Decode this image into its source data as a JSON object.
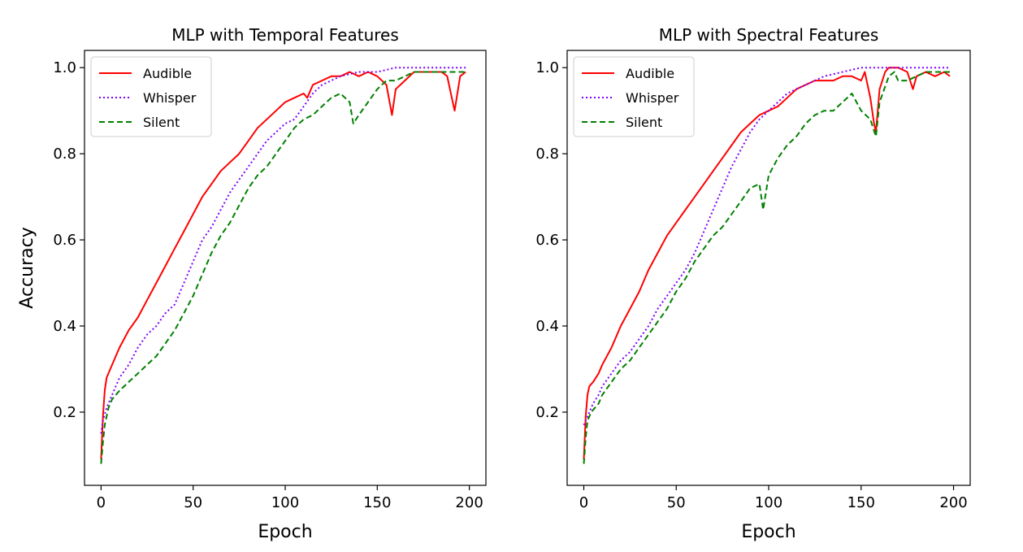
{
  "chart_data": [
    {
      "type": "line",
      "title": "MLP with Temporal Features",
      "xlabel": "Epoch",
      "ylabel": "Accuracy",
      "xlim": [
        -9,
        209
      ],
      "ylim": [
        0.03,
        1.04
      ],
      "xticks": [
        0,
        50,
        100,
        150,
        200
      ],
      "xtick_labels": [
        "0",
        "50",
        "100",
        "150",
        "200"
      ],
      "yticks": [
        0.2,
        0.4,
        0.6,
        0.8,
        1.0
      ],
      "ytick_labels": [
        "0.2",
        "0.4",
        "0.6",
        "0.8",
        "1.0"
      ],
      "legend_position": "top-left",
      "series": [
        {
          "name": "Audible",
          "color": "#ff0000",
          "style": "solid",
          "x": [
            0,
            1,
            2,
            3,
            5,
            8,
            10,
            15,
            20,
            25,
            30,
            35,
            40,
            45,
            50,
            55,
            60,
            65,
            70,
            75,
            80,
            85,
            90,
            95,
            100,
            105,
            110,
            112,
            115,
            120,
            125,
            130,
            135,
            140,
            145,
            150,
            155,
            158,
            160,
            165,
            170,
            175,
            180,
            185,
            188,
            190,
            192,
            195,
            198
          ],
          "y": [
            0.09,
            0.19,
            0.25,
            0.28,
            0.3,
            0.33,
            0.35,
            0.39,
            0.42,
            0.46,
            0.5,
            0.54,
            0.58,
            0.62,
            0.66,
            0.7,
            0.73,
            0.76,
            0.78,
            0.8,
            0.83,
            0.86,
            0.88,
            0.9,
            0.92,
            0.93,
            0.94,
            0.93,
            0.96,
            0.97,
            0.98,
            0.98,
            0.99,
            0.98,
            0.99,
            0.98,
            0.96,
            0.89,
            0.95,
            0.97,
            0.99,
            0.99,
            0.99,
            0.99,
            0.98,
            0.94,
            0.9,
            0.98,
            0.99
          ]
        },
        {
          "name": "Whisper",
          "color": "#7f00ff",
          "style": "dotted",
          "x": [
            0,
            1,
            3,
            5,
            8,
            10,
            15,
            20,
            25,
            30,
            35,
            40,
            45,
            50,
            55,
            60,
            65,
            70,
            75,
            80,
            85,
            90,
            95,
            100,
            105,
            110,
            115,
            120,
            125,
            130,
            140,
            150,
            160,
            170,
            180,
            190,
            198
          ],
          "y": [
            0.15,
            0.18,
            0.21,
            0.23,
            0.26,
            0.28,
            0.31,
            0.35,
            0.38,
            0.4,
            0.43,
            0.45,
            0.5,
            0.55,
            0.6,
            0.63,
            0.67,
            0.71,
            0.74,
            0.77,
            0.8,
            0.83,
            0.85,
            0.87,
            0.88,
            0.91,
            0.94,
            0.96,
            0.97,
            0.98,
            0.99,
            0.99,
            1.0,
            1.0,
            1.0,
            1.0,
            1.0
          ]
        },
        {
          "name": "Silent",
          "color": "#008000",
          "style": "dashed",
          "x": [
            0,
            1,
            2,
            4,
            6,
            8,
            10,
            15,
            20,
            25,
            30,
            35,
            40,
            45,
            50,
            55,
            60,
            65,
            70,
            75,
            80,
            85,
            90,
            95,
            100,
            105,
            110,
            115,
            120,
            125,
            130,
            135,
            137,
            140,
            145,
            150,
            155,
            160,
            165,
            170,
            175,
            180,
            185,
            190,
            195,
            198
          ],
          "y": [
            0.08,
            0.13,
            0.17,
            0.21,
            0.23,
            0.24,
            0.25,
            0.27,
            0.29,
            0.31,
            0.33,
            0.36,
            0.39,
            0.43,
            0.47,
            0.52,
            0.57,
            0.61,
            0.64,
            0.68,
            0.72,
            0.75,
            0.77,
            0.8,
            0.83,
            0.86,
            0.88,
            0.89,
            0.91,
            0.93,
            0.94,
            0.92,
            0.87,
            0.89,
            0.92,
            0.95,
            0.97,
            0.97,
            0.98,
            0.99,
            0.99,
            0.99,
            0.99,
            0.99,
            0.99,
            0.99
          ]
        }
      ]
    },
    {
      "type": "line",
      "title": "MLP with Spectral Features",
      "xlabel": "Epoch",
      "ylabel": "",
      "xlim": [
        -9,
        209
      ],
      "ylim": [
        0.03,
        1.04
      ],
      "xticks": [
        0,
        50,
        100,
        150,
        200
      ],
      "xtick_labels": [
        "0",
        "50",
        "100",
        "150",
        "200"
      ],
      "yticks": [
        0.2,
        0.4,
        0.6,
        0.8,
        1.0
      ],
      "ytick_labels": [
        "0.2",
        "0.4",
        "0.6",
        "0.8",
        "1.0"
      ],
      "legend_position": "top-left",
      "series": [
        {
          "name": "Audible",
          "color": "#ff0000",
          "style": "solid",
          "x": [
            0,
            1,
            2,
            3,
            5,
            8,
            10,
            15,
            20,
            25,
            30,
            35,
            40,
            45,
            50,
            55,
            60,
            65,
            70,
            75,
            80,
            85,
            90,
            95,
            100,
            105,
            110,
            115,
            120,
            125,
            130,
            135,
            140,
            145,
            150,
            152,
            155,
            157,
            158,
            160,
            163,
            165,
            170,
            175,
            178,
            180,
            185,
            190,
            195,
            198
          ],
          "y": [
            0.09,
            0.19,
            0.24,
            0.26,
            0.27,
            0.29,
            0.31,
            0.35,
            0.4,
            0.44,
            0.48,
            0.53,
            0.57,
            0.61,
            0.64,
            0.67,
            0.7,
            0.73,
            0.76,
            0.79,
            0.82,
            0.85,
            0.87,
            0.89,
            0.9,
            0.91,
            0.93,
            0.95,
            0.96,
            0.97,
            0.97,
            0.97,
            0.98,
            0.98,
            0.97,
            0.99,
            0.93,
            0.87,
            0.85,
            0.95,
            0.99,
            1.0,
            1.0,
            0.99,
            0.95,
            0.98,
            0.99,
            0.98,
            0.99,
            0.98
          ]
        },
        {
          "name": "Whisper",
          "color": "#7f00ff",
          "style": "dotted",
          "x": [
            0,
            1,
            3,
            5,
            8,
            10,
            15,
            20,
            25,
            30,
            35,
            40,
            45,
            50,
            55,
            60,
            65,
            70,
            75,
            80,
            85,
            90,
            95,
            100,
            105,
            110,
            115,
            120,
            125,
            130,
            140,
            150,
            160,
            170,
            180,
            190,
            198
          ],
          "y": [
            0.17,
            0.18,
            0.2,
            0.22,
            0.24,
            0.26,
            0.29,
            0.32,
            0.34,
            0.37,
            0.4,
            0.44,
            0.47,
            0.5,
            0.53,
            0.57,
            0.62,
            0.67,
            0.72,
            0.77,
            0.81,
            0.85,
            0.88,
            0.9,
            0.92,
            0.94,
            0.95,
            0.96,
            0.97,
            0.98,
            0.99,
            1.0,
            1.0,
            1.0,
            1.0,
            1.0,
            1.0
          ]
        },
        {
          "name": "Silent",
          "color": "#008000",
          "style": "dashed",
          "x": [
            0,
            1,
            2,
            4,
            6,
            8,
            10,
            15,
            20,
            25,
            30,
            35,
            40,
            45,
            50,
            55,
            60,
            65,
            70,
            75,
            80,
            85,
            90,
            95,
            97,
            100,
            105,
            110,
            115,
            120,
            125,
            130,
            135,
            140,
            145,
            150,
            155,
            158,
            160,
            165,
            168,
            170,
            175,
            180,
            185,
            190,
            195,
            198
          ],
          "y": [
            0.08,
            0.14,
            0.18,
            0.2,
            0.21,
            0.22,
            0.24,
            0.27,
            0.3,
            0.32,
            0.35,
            0.38,
            0.41,
            0.44,
            0.48,
            0.51,
            0.55,
            0.58,
            0.61,
            0.63,
            0.66,
            0.69,
            0.72,
            0.73,
            0.67,
            0.75,
            0.79,
            0.82,
            0.84,
            0.87,
            0.89,
            0.9,
            0.9,
            0.92,
            0.94,
            0.9,
            0.88,
            0.84,
            0.92,
            0.98,
            0.99,
            0.97,
            0.97,
            0.98,
            0.99,
            0.99,
            0.99,
            0.99
          ]
        }
      ]
    }
  ]
}
